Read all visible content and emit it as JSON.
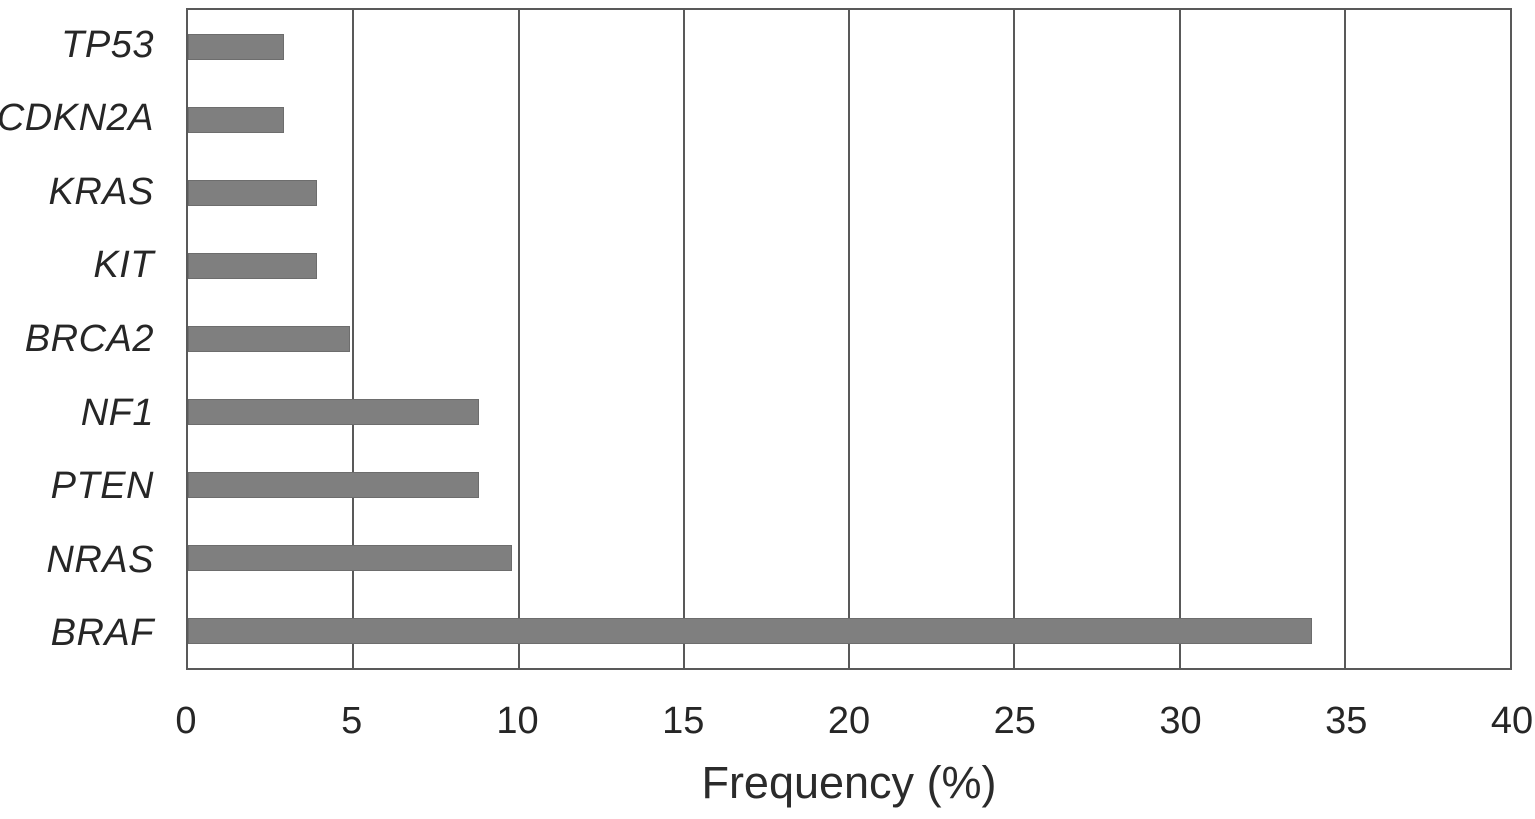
{
  "chart_data": {
    "type": "bar",
    "orientation": "horizontal",
    "title": "",
    "xlabel": "Frequency (%)",
    "ylabel": "",
    "categories": [
      "TP53",
      "CDKN2A",
      "KRAS",
      "KIT",
      "BRCA2",
      "NF1",
      "PTEN",
      "NRAS",
      "BRAF"
    ],
    "values": [
      2.9,
      2.9,
      3.9,
      3.9,
      4.9,
      8.8,
      8.8,
      9.8,
      34
    ],
    "xlim": [
      0,
      40
    ],
    "xticks": [
      0,
      5,
      10,
      15,
      20,
      25,
      30,
      35,
      40
    ],
    "grid": true,
    "legend": false,
    "bar_color": "#7f7f7f",
    "gridline_color": "#595959",
    "border_color": "#595959",
    "text_color": "#262626"
  }
}
